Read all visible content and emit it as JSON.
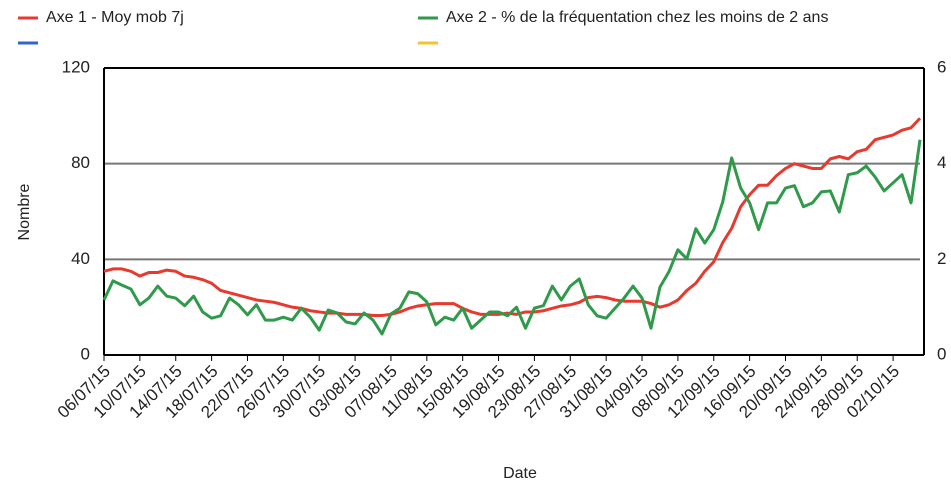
{
  "chart_data": {
    "type": "line",
    "x_label": "Date",
    "y_label": "Nombre",
    "categories": [
      "06/07/15",
      null,
      null,
      null,
      "10/07/15",
      null,
      null,
      null,
      "14/07/15",
      null,
      null,
      null,
      "18/07/15",
      null,
      null,
      null,
      "22/07/15",
      null,
      null,
      null,
      "26/07/15",
      null,
      null,
      null,
      "30/07/15",
      null,
      null,
      null,
      "03/08/15",
      null,
      null,
      null,
      "07/08/15",
      null,
      null,
      null,
      "11/08/15",
      null,
      null,
      null,
      "15/08/15",
      null,
      null,
      null,
      "19/08/15",
      null,
      null,
      null,
      "23/08/15",
      null,
      null,
      null,
      "27/08/15",
      null,
      null,
      null,
      "31/08/15",
      null,
      null,
      null,
      "04/09/15",
      null,
      null,
      null,
      "08/09/15",
      null,
      null,
      null,
      "12/09/15",
      null,
      null,
      null,
      "16/09/15",
      null,
      null,
      null,
      "20/09/15",
      null,
      null,
      null,
      "24/09/15",
      null,
      null,
      null,
      "28/09/15",
      null,
      null,
      null,
      "02/10/15",
      null,
      null,
      null
    ],
    "series": [
      {
        "name": "Axe 1 - Moy mob 7j",
        "color": "#e8392f",
        "axis": "y",
        "values": [
          35,
          36,
          36,
          35,
          33,
          34.5,
          34.5,
          35.5,
          35,
          33,
          32.5,
          31.5,
          30,
          27,
          26,
          25,
          24,
          23,
          22.5,
          22,
          21,
          20,
          19.5,
          18.5,
          18,
          17.5,
          17.5,
          17,
          17,
          17,
          16.5,
          16.5,
          17,
          18,
          19.5,
          20.5,
          21,
          21.5,
          21.5,
          21.5,
          19.5,
          18,
          17,
          17,
          17,
          17.5,
          17,
          18,
          18,
          18.5,
          19.5,
          20.5,
          21,
          22,
          24,
          24.5,
          24,
          23,
          22.5,
          22.5,
          22.5,
          21.5,
          20,
          21,
          23,
          27,
          30,
          35,
          39,
          47,
          53,
          62,
          67,
          71,
          71,
          75,
          78,
          80,
          79,
          78,
          78,
          82,
          83,
          82,
          85,
          86,
          90,
          91,
          92,
          94,
          95,
          99
        ]
      },
      {
        "name": "Axe 2 - % de la fréquentation chez les moins de 2 ans",
        "color": "#2e9a4a",
        "axis": "y2",
        "values": [
          1.15,
          1.55,
          1.46,
          1.38,
          1.05,
          1.19,
          1.44,
          1.23,
          1.19,
          1.03,
          1.23,
          0.9,
          0.77,
          0.82,
          1.19,
          1.05,
          0.84,
          1.05,
          0.73,
          0.73,
          0.79,
          0.73,
          0.98,
          0.79,
          0.52,
          0.94,
          0.88,
          0.69,
          0.65,
          0.88,
          0.73,
          0.44,
          0.86,
          0.98,
          1.32,
          1.28,
          1.11,
          0.63,
          0.79,
          0.73,
          0.98,
          0.56,
          0.73,
          0.9,
          0.9,
          0.82,
          1.0,
          0.56,
          0.98,
          1.03,
          1.44,
          1.15,
          1.44,
          1.59,
          1.05,
          0.82,
          0.77,
          0.98,
          1.19,
          1.44,
          1.19,
          0.56,
          1.42,
          1.74,
          2.2,
          2.01,
          2.64,
          2.34,
          2.62,
          3.2,
          4.12,
          3.49,
          3.18,
          2.62,
          3.18,
          3.18,
          3.49,
          3.54,
          3.1,
          3.18,
          3.41,
          3.43,
          2.99,
          3.77,
          3.81,
          3.95,
          3.72,
          3.43,
          3.6,
          3.77,
          3.18,
          4.5
        ]
      }
    ],
    "ylim": [
      0,
      120
    ],
    "yticks": [
      0,
      40,
      80,
      120
    ],
    "y2lim": [
      0,
      6
    ],
    "y2ticks": [
      0,
      2,
      4,
      6
    ],
    "grid": true
  }
}
